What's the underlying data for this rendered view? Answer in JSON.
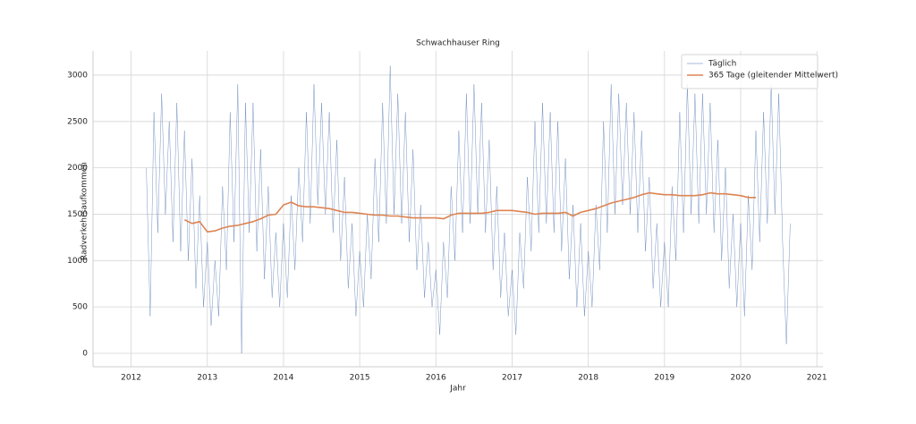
{
  "chart_data": {
    "type": "line",
    "title": "Schwachhauser Ring",
    "x_label": "Jahr",
    "y_label": "Radverkehrsaufkommen",
    "xlim": [
      2011.5,
      2021.08
    ],
    "xticks": [
      2012,
      2013,
      2014,
      2015,
      2016,
      2017,
      2018,
      2019,
      2020,
      2021
    ],
    "ylim": [
      -145,
      3260
    ],
    "yticks": [
      0,
      500,
      1000,
      1500,
      2000,
      2500,
      3000
    ],
    "grid": true,
    "legend": "upper right",
    "series": [
      {
        "name": "Täglich",
        "color": "#4c72b0",
        "x": [
          2012.2,
          2012.25,
          2012.3,
          2012.35,
          2012.4,
          2012.45,
          2012.5,
          2012.55,
          2012.6,
          2012.65,
          2012.7,
          2012.75,
          2012.8,
          2012.85,
          2012.9,
          2012.95,
          2013.0,
          2013.05,
          2013.1,
          2013.15,
          2013.2,
          2013.25,
          2013.3,
          2013.35,
          2013.4,
          2013.45,
          2013.5,
          2013.55,
          2013.6,
          2013.65,
          2013.7,
          2013.75,
          2013.8,
          2013.85,
          2013.9,
          2013.95,
          2014.0,
          2014.05,
          2014.1,
          2014.15,
          2014.2,
          2014.25,
          2014.3,
          2014.35,
          2014.4,
          2014.45,
          2014.5,
          2014.55,
          2014.6,
          2014.65,
          2014.7,
          2014.75,
          2014.8,
          2014.85,
          2014.9,
          2014.95,
          2015.0,
          2015.05,
          2015.1,
          2015.15,
          2015.2,
          2015.25,
          2015.3,
          2015.35,
          2015.4,
          2015.45,
          2015.5,
          2015.55,
          2015.6,
          2015.65,
          2015.7,
          2015.75,
          2015.8,
          2015.85,
          2015.9,
          2015.95,
          2016.0,
          2016.05,
          2016.1,
          2016.15,
          2016.2,
          2016.25,
          2016.3,
          2016.35,
          2016.4,
          2016.45,
          2016.5,
          2016.55,
          2016.6,
          2016.65,
          2016.7,
          2016.75,
          2016.8,
          2016.85,
          2016.9,
          2016.95,
          2017.0,
          2017.05,
          2017.1,
          2017.15,
          2017.2,
          2017.25,
          2017.3,
          2017.35,
          2017.4,
          2017.45,
          2017.5,
          2017.55,
          2017.6,
          2017.65,
          2017.7,
          2017.75,
          2017.8,
          2017.85,
          2017.9,
          2017.95,
          2018.0,
          2018.05,
          2018.1,
          2018.15,
          2018.2,
          2018.25,
          2018.3,
          2018.35,
          2018.4,
          2018.45,
          2018.5,
          2018.55,
          2018.6,
          2018.65,
          2018.7,
          2018.75,
          2018.8,
          2018.85,
          2018.9,
          2018.95,
          2019.0,
          2019.05,
          2019.1,
          2019.15,
          2019.2,
          2019.25,
          2019.3,
          2019.35,
          2019.4,
          2019.45,
          2019.5,
          2019.55,
          2019.6,
          2019.65,
          2019.7,
          2019.75,
          2019.8,
          2019.85,
          2019.9,
          2019.95,
          2020.0,
          2020.05,
          2020.1,
          2020.15,
          2020.2,
          2020.25,
          2020.3,
          2020.35,
          2020.4,
          2020.45,
          2020.5,
          2020.55,
          2020.6,
          2020.65
        ],
        "values": [
          2000,
          400,
          2600,
          1300,
          2800,
          1500,
          2500,
          1200,
          2700,
          1100,
          2400,
          1000,
          2100,
          700,
          1700,
          500,
          1200,
          300,
          1000,
          400,
          1800,
          900,
          2600,
          1200,
          2900,
          0,
          2700,
          1300,
          2700,
          1100,
          2200,
          800,
          1800,
          600,
          1300,
          500,
          1400,
          600,
          1700,
          900,
          2000,
          1200,
          2600,
          1400,
          2900,
          1600,
          2700,
          1500,
          2600,
          1300,
          2300,
          1000,
          1900,
          700,
          1400,
          400,
          1100,
          500,
          1500,
          800,
          2100,
          1200,
          2700,
          1400,
          3100,
          1500,
          2800,
          1400,
          2600,
          1200,
          2200,
          900,
          1600,
          600,
          1200,
          500,
          900,
          200,
          1200,
          600,
          1800,
          1000,
          2400,
          1300,
          2800,
          1400,
          2900,
          1500,
          2700,
          1300,
          2300,
          900,
          1800,
          600,
          1300,
          400,
          900,
          200,
          1300,
          700,
          1900,
          1100,
          2500,
          1300,
          2700,
          1400,
          2600,
          1300,
          2500,
          1100,
          2100,
          800,
          1600,
          500,
          1400,
          400,
          1100,
          500,
          1600,
          900,
          2500,
          1300,
          2900,
          1500,
          2800,
          1600,
          2700,
          1500,
          2600,
          1300,
          2400,
          1100,
          1900,
          700,
          1400,
          500,
          1200,
          500,
          1800,
          1000,
          2600,
          1300,
          2900,
          1500,
          2800,
          1400,
          2800,
          1500,
          2700,
          1300,
          2300,
          1000,
          2000,
          700,
          1500,
          500,
          1400,
          400,
          1700,
          900,
          2400,
          1200,
          2600,
          1400,
          2900,
          1500,
          2800,
          1200,
          100,
          1400
        ]
      },
      {
        "name": "365 Tage (gleitender Mittelwert)",
        "color": "#dd8452",
        "x": [
          2012.7,
          2012.8,
          2012.9,
          2013.0,
          2013.1,
          2013.2,
          2013.3,
          2013.4,
          2013.5,
          2013.6,
          2013.7,
          2013.8,
          2013.9,
          2014.0,
          2014.1,
          2014.2,
          2014.3,
          2014.4,
          2014.5,
          2014.6,
          2014.7,
          2014.8,
          2014.9,
          2015.0,
          2015.1,
          2015.2,
          2015.3,
          2015.4,
          2015.5,
          2015.6,
          2015.7,
          2015.8,
          2015.9,
          2016.0,
          2016.1,
          2016.2,
          2016.3,
          2016.4,
          2016.5,
          2016.6,
          2016.7,
          2016.8,
          2016.9,
          2017.0,
          2017.1,
          2017.2,
          2017.3,
          2017.4,
          2017.5,
          2017.6,
          2017.7,
          2017.8,
          2017.9,
          2018.0,
          2018.1,
          2018.2,
          2018.3,
          2018.4,
          2018.5,
          2018.6,
          2018.7,
          2018.8,
          2018.9,
          2019.0,
          2019.1,
          2019.2,
          2019.3,
          2019.4,
          2019.5,
          2019.6,
          2019.7,
          2019.8,
          2019.9,
          2020.0,
          2020.1,
          2020.2
        ],
        "values": [
          1440,
          1400,
          1420,
          1310,
          1320,
          1350,
          1370,
          1380,
          1400,
          1420,
          1450,
          1490,
          1500,
          1600,
          1630,
          1590,
          1580,
          1580,
          1570,
          1560,
          1540,
          1520,
          1520,
          1510,
          1500,
          1490,
          1490,
          1480,
          1480,
          1470,
          1460,
          1460,
          1460,
          1460,
          1450,
          1490,
          1510,
          1510,
          1510,
          1510,
          1520,
          1540,
          1540,
          1540,
          1530,
          1520,
          1500,
          1510,
          1510,
          1510,
          1520,
          1480,
          1520,
          1540,
          1560,
          1590,
          1620,
          1640,
          1660,
          1680,
          1710,
          1730,
          1720,
          1710,
          1710,
          1700,
          1700,
          1700,
          1710,
          1730,
          1720,
          1720,
          1710,
          1700,
          1680,
          1680
        ]
      }
    ]
  }
}
